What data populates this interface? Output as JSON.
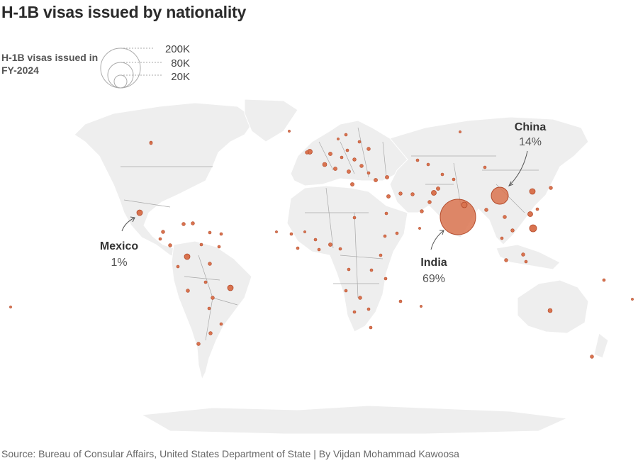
{
  "title": "H-1B visas issued by nationality",
  "legend": {
    "label": "H-1B visas issued in FY-2024",
    "sizes": [
      {
        "label": "200K",
        "value": 200000
      },
      {
        "label": "80K",
        "value": 80000
      },
      {
        "label": "20K",
        "value": 20000
      }
    ]
  },
  "colors": {
    "bubble_fill": "#d9734f",
    "bubble_stroke": "#b34a2a",
    "land": "#eeeeee",
    "border": "#9a9a9a"
  },
  "annotations": [
    {
      "country": "China",
      "name": "China",
      "share": "14%"
    },
    {
      "country": "India",
      "name": "India",
      "share": "69%"
    },
    {
      "country": "Mexico",
      "name": "Mexico",
      "share": "1%"
    }
  ],
  "source": "Source: Bureau of Consular Affairs, United States Department of State | By Vijdan Mohammad Kawoosa",
  "chart_data": {
    "type": "map-bubble",
    "size_metric": "H-1B visas issued in FY-2024",
    "highlighted": [
      {
        "country": "India",
        "share_pct": 69
      },
      {
        "country": "China",
        "share_pct": 14
      },
      {
        "country": "Mexico",
        "share_pct": 1
      }
    ]
  }
}
